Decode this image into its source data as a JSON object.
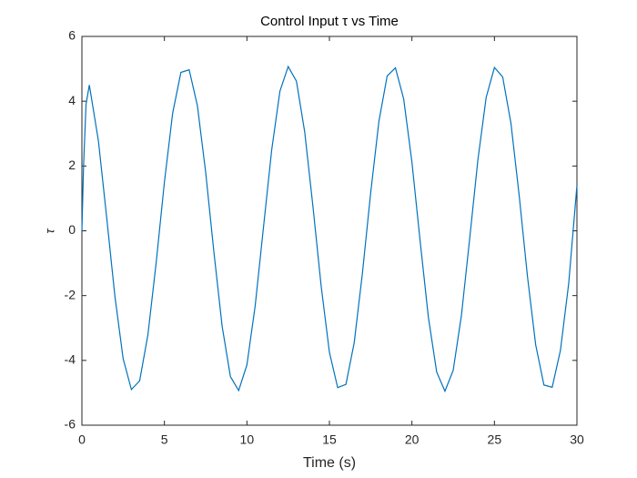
{
  "chart_data": {
    "type": "line",
    "title": "Control Input τ vs Time",
    "xlabel": "Time (s)",
    "ylabel": "τ",
    "x": [
      0,
      0.1,
      0.25,
      0.45,
      1,
      1.5,
      2,
      2.5,
      3,
      3.5,
      4,
      4.5,
      5,
      5.5,
      6,
      6.5,
      7,
      7.5,
      8,
      8.5,
      9,
      9.5,
      10,
      10.5,
      11,
      11.5,
      12,
      12.5,
      13,
      13.5,
      14,
      14.5,
      15,
      15.5,
      16,
      16.5,
      17,
      17.5,
      18,
      18.5,
      19,
      19.5,
      20,
      20.5,
      21,
      21.5,
      22,
      22.5,
      23,
      23.5,
      24,
      24.5,
      25,
      25.5,
      26,
      26.5,
      27,
      27.5,
      28,
      28.5,
      29,
      29.5,
      30
    ],
    "series": [
      {
        "color": "#0072bd",
        "values": [
          0,
          2.0,
          3.9,
          4.5,
          2.78,
          0.42,
          -2.02,
          -3.95,
          -4.9,
          -4.63,
          -3.21,
          -0.99,
          1.5,
          3.63,
          4.89,
          4.97,
          3.86,
          1.81,
          -0.66,
          -2.95,
          -4.5,
          -4.93,
          -4.14,
          -2.32,
          0.09,
          2.49,
          4.31,
          5.07,
          4.62,
          3.06,
          0.76,
          -1.71,
          -3.75,
          -4.84,
          -4.74,
          -3.46,
          -1.31,
          1.17,
          3.38,
          4.78,
          5.03,
          4.07,
          2.12,
          -0.33,
          -2.68,
          -4.36,
          -4.95,
          -4.31,
          -2.61,
          -0.24,
          2.2,
          4.12,
          5.04,
          4.75,
          3.32,
          1.09,
          -1.4,
          -3.52,
          -4.76,
          -4.83,
          -3.69,
          -1.63,
          1.4
        ]
      }
    ],
    "xlim": [
      0,
      30
    ],
    "xticks": [
      0,
      5,
      10,
      15,
      20,
      25,
      30
    ],
    "ylim": [
      -6,
      6
    ],
    "yticks": [
      -6,
      -4,
      -2,
      0,
      2,
      4,
      6
    ]
  }
}
